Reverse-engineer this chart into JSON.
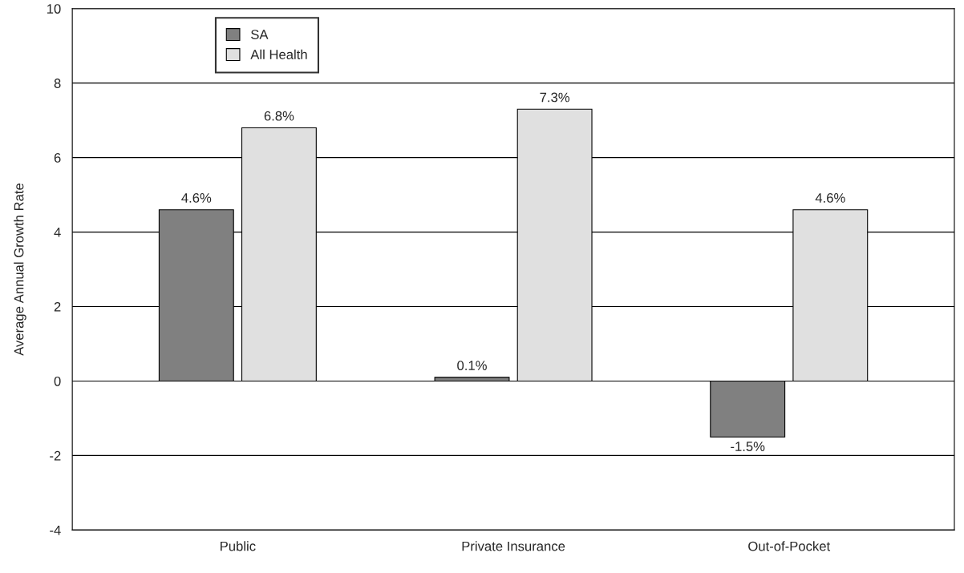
{
  "chart_data": {
    "type": "bar",
    "ylabel": "Average Annual Growth Rate",
    "categories": [
      "Public",
      "Private Insurance",
      "Out-of-Pocket"
    ],
    "series": [
      {
        "name": "SA",
        "color": "#808080",
        "values": [
          4.6,
          0.1,
          -1.5
        ],
        "value_labels": [
          "4.6%",
          "0.1%",
          "-1.5%"
        ]
      },
      {
        "name": "All Health",
        "color": "#e0e0e0",
        "values": [
          6.8,
          7.3,
          4.6
        ],
        "value_labels": [
          "6.8%",
          "7.3%",
          "4.6%"
        ]
      }
    ],
    "ylim": [
      -4,
      10
    ],
    "yticks": [
      {
        "value": -4,
        "label": "-4"
      },
      {
        "value": -2,
        "label": "-2"
      },
      0,
      2,
      4,
      6,
      8,
      10
    ],
    "grid": "y",
    "legend": "top left"
  }
}
